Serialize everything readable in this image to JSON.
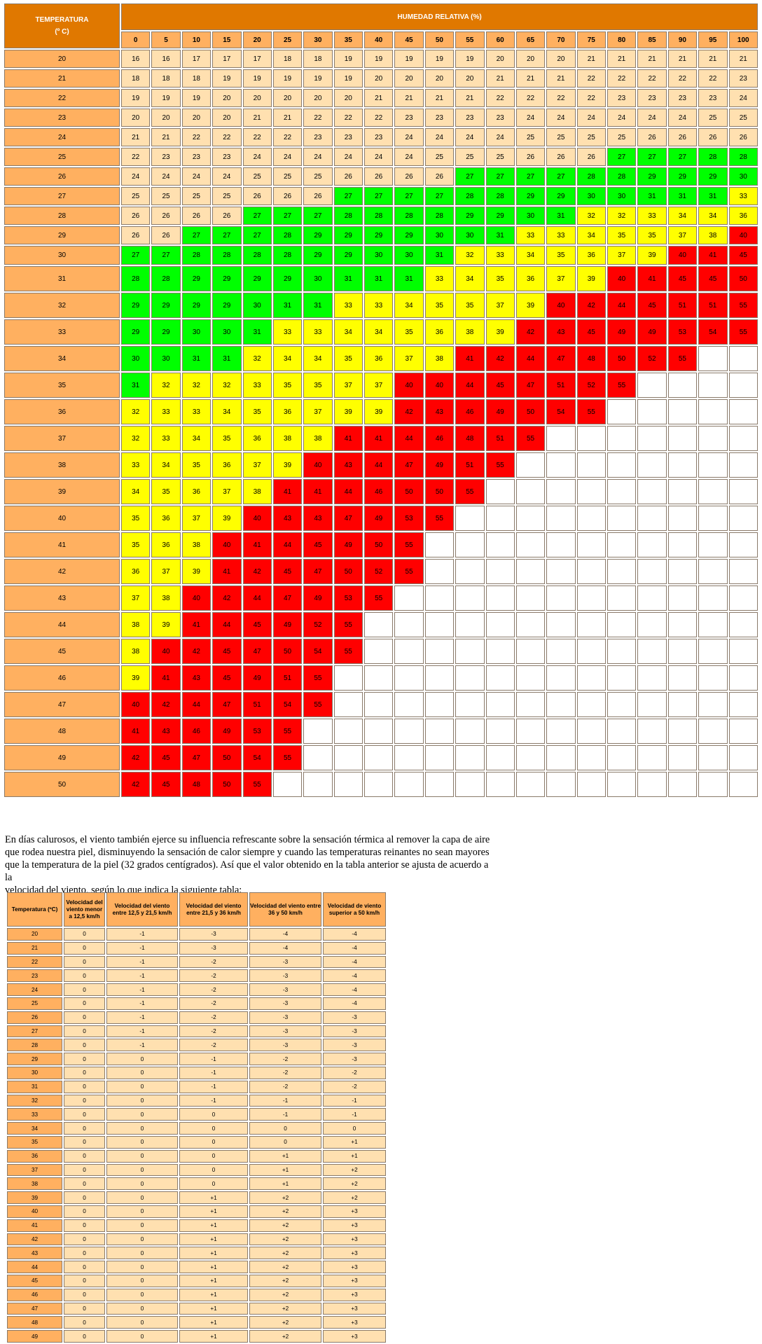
{
  "heat_index": {
    "temp_header": [
      "TEMPERATURA",
      "(º C)"
    ],
    "humidity_header": "HUMEDAD RELATIVA (%)",
    "humidity": [
      "0",
      "5",
      "10",
      "15",
      "20",
      "25",
      "30",
      "35",
      "40",
      "45",
      "50",
      "55",
      "60",
      "65",
      "70",
      "75",
      "80",
      "85",
      "90",
      "95",
      "100"
    ],
    "colors": {
      "header": "#e07800",
      "temp_col": "#ffb060",
      "normal": "#ffe0b0",
      "green": "#00ff00",
      "yellow": "#ffff00",
      "red": "#ff0000",
      "empty": "#ffffff"
    },
    "rows": [
      {
        "t": "20",
        "v": [
          "16",
          "16",
          "17",
          "17",
          "17",
          "18",
          "18",
          "19",
          "19",
          "19",
          "19",
          "19",
          "20",
          "20",
          "20",
          "21",
          "21",
          "21",
          "21",
          "21",
          "21"
        ]
      },
      {
        "t": "21",
        "v": [
          "18",
          "18",
          "18",
          "19",
          "19",
          "19",
          "19",
          "19",
          "20",
          "20",
          "20",
          "20",
          "21",
          "21",
          "21",
          "22",
          "22",
          "22",
          "22",
          "22",
          "23"
        ]
      },
      {
        "t": "22",
        "v": [
          "19",
          "19",
          "19",
          "20",
          "20",
          "20",
          "20",
          "20",
          "21",
          "21",
          "21",
          "21",
          "22",
          "22",
          "22",
          "22",
          "23",
          "23",
          "23",
          "23",
          "24"
        ]
      },
      {
        "t": "23",
        "v": [
          "20",
          "20",
          "20",
          "20",
          "21",
          "21",
          "22",
          "22",
          "22",
          "23",
          "23",
          "23",
          "23",
          "24",
          "24",
          "24",
          "24",
          "24",
          "24",
          "25",
          "25"
        ]
      },
      {
        "t": "24",
        "v": [
          "21",
          "21",
          "22",
          "22",
          "22",
          "22",
          "23",
          "23",
          "23",
          "24",
          "24",
          "24",
          "24",
          "25",
          "25",
          "25",
          "25",
          "26",
          "26",
          "26",
          "26"
        ]
      },
      {
        "t": "25",
        "v": [
          "22",
          "23",
          "23",
          "23",
          "24",
          "24",
          "24",
          "24",
          "24",
          "24",
          "25",
          "25",
          "25",
          "26",
          "26",
          "26",
          "27",
          "27",
          "27",
          "28",
          "28"
        ]
      },
      {
        "t": "26",
        "v": [
          "24",
          "24",
          "24",
          "24",
          "25",
          "25",
          "25",
          "26",
          "26",
          "26",
          "26",
          "27",
          "27",
          "27",
          "27",
          "28",
          "28",
          "29",
          "29",
          "29",
          "30"
        ]
      },
      {
        "t": "27",
        "v": [
          "25",
          "25",
          "25",
          "25",
          "26",
          "26",
          "26",
          "27",
          "27",
          "27",
          "27",
          "28",
          "28",
          "29",
          "29",
          "30",
          "30",
          "31",
          "31",
          "31",
          "33"
        ]
      },
      {
        "t": "28",
        "v": [
          "26",
          "26",
          "26",
          "26",
          "27",
          "27",
          "27",
          "28",
          "28",
          "28",
          "28",
          "29",
          "29",
          "30",
          "31",
          "32",
          "32",
          "33",
          "34",
          "34",
          "36"
        ]
      },
      {
        "t": "29",
        "v": [
          "26",
          "26",
          "27",
          "27",
          "27",
          "28",
          "29",
          "29",
          "29",
          "29",
          "30",
          "30",
          "31",
          "33",
          "33",
          "34",
          "35",
          "35",
          "37",
          "38",
          "40"
        ]
      },
      {
        "t": "30",
        "v": [
          "27",
          "27",
          "28",
          "28",
          "28",
          "28",
          "29",
          "29",
          "30",
          "30",
          "31",
          "32",
          "33",
          "34",
          "35",
          "36",
          "37",
          "39",
          "40",
          "41",
          "45"
        ]
      },
      {
        "t": "31",
        "v": [
          "28",
          "28",
          "29",
          "29",
          "29",
          "29",
          "30",
          "31",
          "31",
          "31",
          "33",
          "34",
          "35",
          "36",
          "37",
          "39",
          "40",
          "41",
          "45",
          "45",
          "50"
        ]
      },
      {
        "t": "32",
        "v": [
          "29",
          "29",
          "29",
          "29",
          "30",
          "31",
          "31",
          "33",
          "33",
          "34",
          "35",
          "35",
          "37",
          "39",
          "40",
          "42",
          "44",
          "45",
          "51",
          "51",
          "55"
        ]
      },
      {
        "t": "33",
        "v": [
          "29",
          "29",
          "30",
          "30",
          "31",
          "33",
          "33",
          "34",
          "34",
          "35",
          "36",
          "38",
          "39",
          "42",
          "43",
          "45",
          "49",
          "49",
          "53",
          "54",
          "55"
        ]
      },
      {
        "t": "34",
        "v": [
          "30",
          "30",
          "31",
          "31",
          "32",
          "34",
          "34",
          "35",
          "36",
          "37",
          "38",
          "41",
          "42",
          "44",
          "47",
          "48",
          "50",
          "52",
          "55",
          "",
          ""
        ]
      },
      {
        "t": "35",
        "v": [
          "31",
          "32",
          "32",
          "32",
          "33",
          "35",
          "35",
          "37",
          "37",
          "40",
          "40",
          "44",
          "45",
          "47",
          "51",
          "52",
          "55",
          "",
          "",
          "",
          ""
        ]
      },
      {
        "t": "36",
        "v": [
          "32",
          "33",
          "33",
          "34",
          "35",
          "36",
          "37",
          "39",
          "39",
          "42",
          "43",
          "46",
          "49",
          "50",
          "54",
          "55",
          "",
          "",
          "",
          "",
          ""
        ]
      },
      {
        "t": "37",
        "v": [
          "32",
          "33",
          "34",
          "35",
          "36",
          "38",
          "38",
          "41",
          "41",
          "44",
          "46",
          "48",
          "51",
          "55",
          "",
          "",
          "",
          "",
          "",
          "",
          ""
        ]
      },
      {
        "t": "38",
        "v": [
          "33",
          "34",
          "35",
          "36",
          "37",
          "39",
          "40",
          "43",
          "44",
          "47",
          "49",
          "51",
          "55",
          "",
          "",
          "",
          "",
          "",
          "",
          "",
          ""
        ]
      },
      {
        "t": "39",
        "v": [
          "34",
          "35",
          "36",
          "37",
          "38",
          "41",
          "41",
          "44",
          "46",
          "50",
          "50",
          "55",
          "",
          "",
          "",
          "",
          "",
          "",
          "",
          "",
          ""
        ]
      },
      {
        "t": "40",
        "v": [
          "35",
          "36",
          "37",
          "39",
          "40",
          "43",
          "43",
          "47",
          "49",
          "53",
          "55",
          "",
          "",
          "",
          "",
          "",
          "",
          "",
          "",
          "",
          ""
        ]
      },
      {
        "t": "41",
        "v": [
          "35",
          "36",
          "38",
          "40",
          "41",
          "44",
          "45",
          "49",
          "50",
          "55",
          "",
          "",
          "",
          "",
          "",
          "",
          "",
          "",
          "",
          "",
          ""
        ]
      },
      {
        "t": "42",
        "v": [
          "36",
          "37",
          "39",
          "41",
          "42",
          "45",
          "47",
          "50",
          "52",
          "55",
          "",
          "",
          "",
          "",
          "",
          "",
          "",
          "",
          "",
          "",
          ""
        ]
      },
      {
        "t": "43",
        "v": [
          "37",
          "38",
          "40",
          "42",
          "44",
          "47",
          "49",
          "53",
          "55",
          "",
          "",
          "",
          "",
          "",
          "",
          "",
          "",
          "",
          "",
          "",
          ""
        ]
      },
      {
        "t": "44",
        "v": [
          "38",
          "39",
          "41",
          "44",
          "45",
          "49",
          "52",
          "55",
          "",
          "",
          "",
          "",
          "",
          "",
          "",
          "",
          "",
          "",
          "",
          "",
          ""
        ]
      },
      {
        "t": "45",
        "v": [
          "38",
          "40",
          "42",
          "45",
          "47",
          "50",
          "54",
          "55",
          "",
          "",
          "",
          "",
          "",
          "",
          "",
          "",
          "",
          "",
          "",
          "",
          ""
        ]
      },
      {
        "t": "46",
        "v": [
          "39",
          "41",
          "43",
          "45",
          "49",
          "51",
          "55",
          "",
          "",
          "",
          "",
          "",
          "",
          "",
          "",
          "",
          "",
          "",
          "",
          "",
          ""
        ]
      },
      {
        "t": "47",
        "v": [
          "40",
          "42",
          "44",
          "47",
          "51",
          "54",
          "55",
          "",
          "",
          "",
          "",
          "",
          "",
          "",
          "",
          "",
          "",
          "",
          "",
          "",
          ""
        ]
      },
      {
        "t": "48",
        "v": [
          "41",
          "43",
          "46",
          "49",
          "53",
          "55",
          "",
          "",
          "",
          "",
          "",
          "",
          "",
          "",
          "",
          "",
          "",
          "",
          "",
          "",
          ""
        ]
      },
      {
        "t": "49",
        "v": [
          "42",
          "45",
          "47",
          "50",
          "54",
          "55",
          "",
          "",
          "",
          "",
          "",
          "",
          "",
          "",
          "",
          "",
          "",
          "",
          "",
          "",
          ""
        ]
      },
      {
        "t": "50",
        "v": [
          "42",
          "45",
          "48",
          "50",
          "55",
          "",
          "",
          "",
          "",
          "",
          "",
          "",
          "",
          "",
          "",
          "",
          "",
          "",
          "",
          "",
          ""
        ]
      }
    ]
  },
  "paragraph": {
    "lines": [
      "En días calurosos, el viento también ejerce su influencia refrescante sobre la sensación térmica al remover la capa de aire",
      "que rodea nuestra piel, disminuyendo la sensación de calor siempre y cuando las temperaturas reinantes no sean mayores",
      "que la temperatura de la piel (32 grados centígrados). Así que el valor obtenido en la tabla anterior se ajusta de acuerdo a la",
      "velocidad del viento, según lo que indica la siguiente tabla:"
    ]
  },
  "wind_table": {
    "headers": [
      "Temperatura (ºC)",
      "Velocidad del viento menor a 12,5 km/h",
      "Velocidad del viento entre 12,5 y 21,5 km/h",
      "Velocidad del viento entre 21,5 y 36 km/h",
      "Velocidad del viento entre 36 y 50 km/h",
      "Velocidad de viento superior a 50 km/h"
    ],
    "rows": [
      [
        "20",
        "0",
        "-1",
        "-3",
        "-4",
        "-4"
      ],
      [
        "21",
        "0",
        "-1",
        "-3",
        "-4",
        "-4"
      ],
      [
        "22",
        "0",
        "-1",
        "-2",
        "-3",
        "-4"
      ],
      [
        "23",
        "0",
        "-1",
        "-2",
        "-3",
        "-4"
      ],
      [
        "24",
        "0",
        "-1",
        "-2",
        "-3",
        "-4"
      ],
      [
        "25",
        "0",
        "-1",
        "-2",
        "-3",
        "-4"
      ],
      [
        "26",
        "0",
        "-1",
        "-2",
        "-3",
        "-3"
      ],
      [
        "27",
        "0",
        "-1",
        "-2",
        "-3",
        "-3"
      ],
      [
        "28",
        "0",
        "-1",
        "-2",
        "-3",
        "-3"
      ],
      [
        "29",
        "0",
        "0",
        "-1",
        "-2",
        "-3"
      ],
      [
        "30",
        "0",
        "0",
        "-1",
        "-2",
        "-2"
      ],
      [
        "31",
        "0",
        "0",
        "-1",
        "-2",
        "-2"
      ],
      [
        "32",
        "0",
        "0",
        "-1",
        "-1",
        "-1"
      ],
      [
        "33",
        "0",
        "0",
        "0",
        "-1",
        "-1"
      ],
      [
        "34",
        "0",
        "0",
        "0",
        "0",
        "0"
      ],
      [
        "35",
        "0",
        "0",
        "0",
        "0",
        "+1"
      ],
      [
        "36",
        "0",
        "0",
        "0",
        "+1",
        "+1"
      ],
      [
        "37",
        "0",
        "0",
        "0",
        "+1",
        "+2"
      ],
      [
        "38",
        "0",
        "0",
        "0",
        "+1",
        "+2"
      ],
      [
        "39",
        "0",
        "0",
        "+1",
        "+2",
        "+2"
      ],
      [
        "40",
        "0",
        "0",
        "+1",
        "+2",
        "+3"
      ],
      [
        "41",
        "0",
        "0",
        "+1",
        "+2",
        "+3"
      ],
      [
        "42",
        "0",
        "0",
        "+1",
        "+2",
        "+3"
      ],
      [
        "43",
        "0",
        "0",
        "+1",
        "+2",
        "+3"
      ],
      [
        "44",
        "0",
        "0",
        "+1",
        "+2",
        "+3"
      ],
      [
        "45",
        "0",
        "0",
        "+1",
        "+2",
        "+3"
      ],
      [
        "46",
        "0",
        "0",
        "+1",
        "+2",
        "+3"
      ],
      [
        "47",
        "0",
        "0",
        "+1",
        "+2",
        "+3"
      ],
      [
        "48",
        "0",
        "0",
        "+1",
        "+2",
        "+3"
      ],
      [
        "49",
        "0",
        "0",
        "+1",
        "+2",
        "+3"
      ]
    ]
  }
}
